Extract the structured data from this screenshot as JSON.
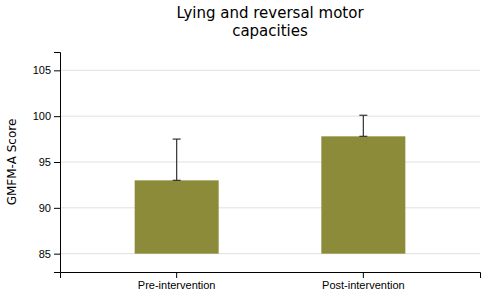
{
  "chart_data": {
    "type": "bar",
    "title": "Lying and reversal motor\ncapacities",
    "ylabel": "GMFM-A Score",
    "categories": [
      "Pre-intervention",
      "Post-intervention"
    ],
    "values": [
      93.0,
      97.8
    ],
    "errors_up": [
      4.5,
      2.3
    ],
    "errors_down": [
      0.0,
      0.0
    ],
    "baseline": 85,
    "color": "#8B8B3A",
    "ylim": [
      83,
      107
    ],
    "yticks": [
      85,
      90,
      95,
      100,
      105
    ],
    "grid": true
  }
}
